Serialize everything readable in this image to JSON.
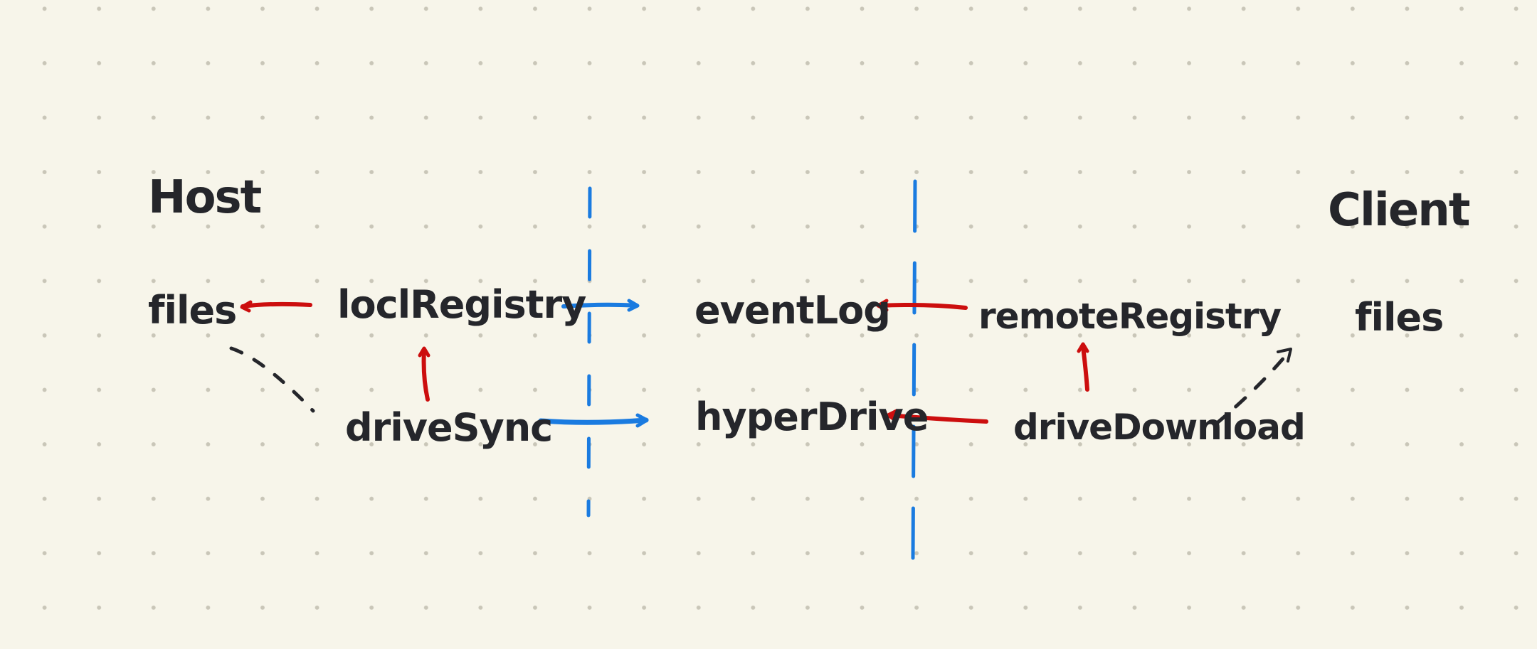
{
  "colors": {
    "background": "#f7f5ea",
    "dots": "#c9c6b8",
    "ink": "#25262b",
    "red": "#cc0e0e",
    "blue": "#1a7be0"
  },
  "diagram": {
    "host": {
      "title": "Host",
      "files": "files",
      "local_registry": "loclRegistry",
      "drive_sync": "driveSync"
    },
    "middle": {
      "event_log": "eventLog",
      "hyper_drive": "hyperDrive"
    },
    "client": {
      "title": "Client",
      "remote_registry": "remoteRegistry",
      "drive_download": "driveDownload",
      "files": "files"
    }
  }
}
